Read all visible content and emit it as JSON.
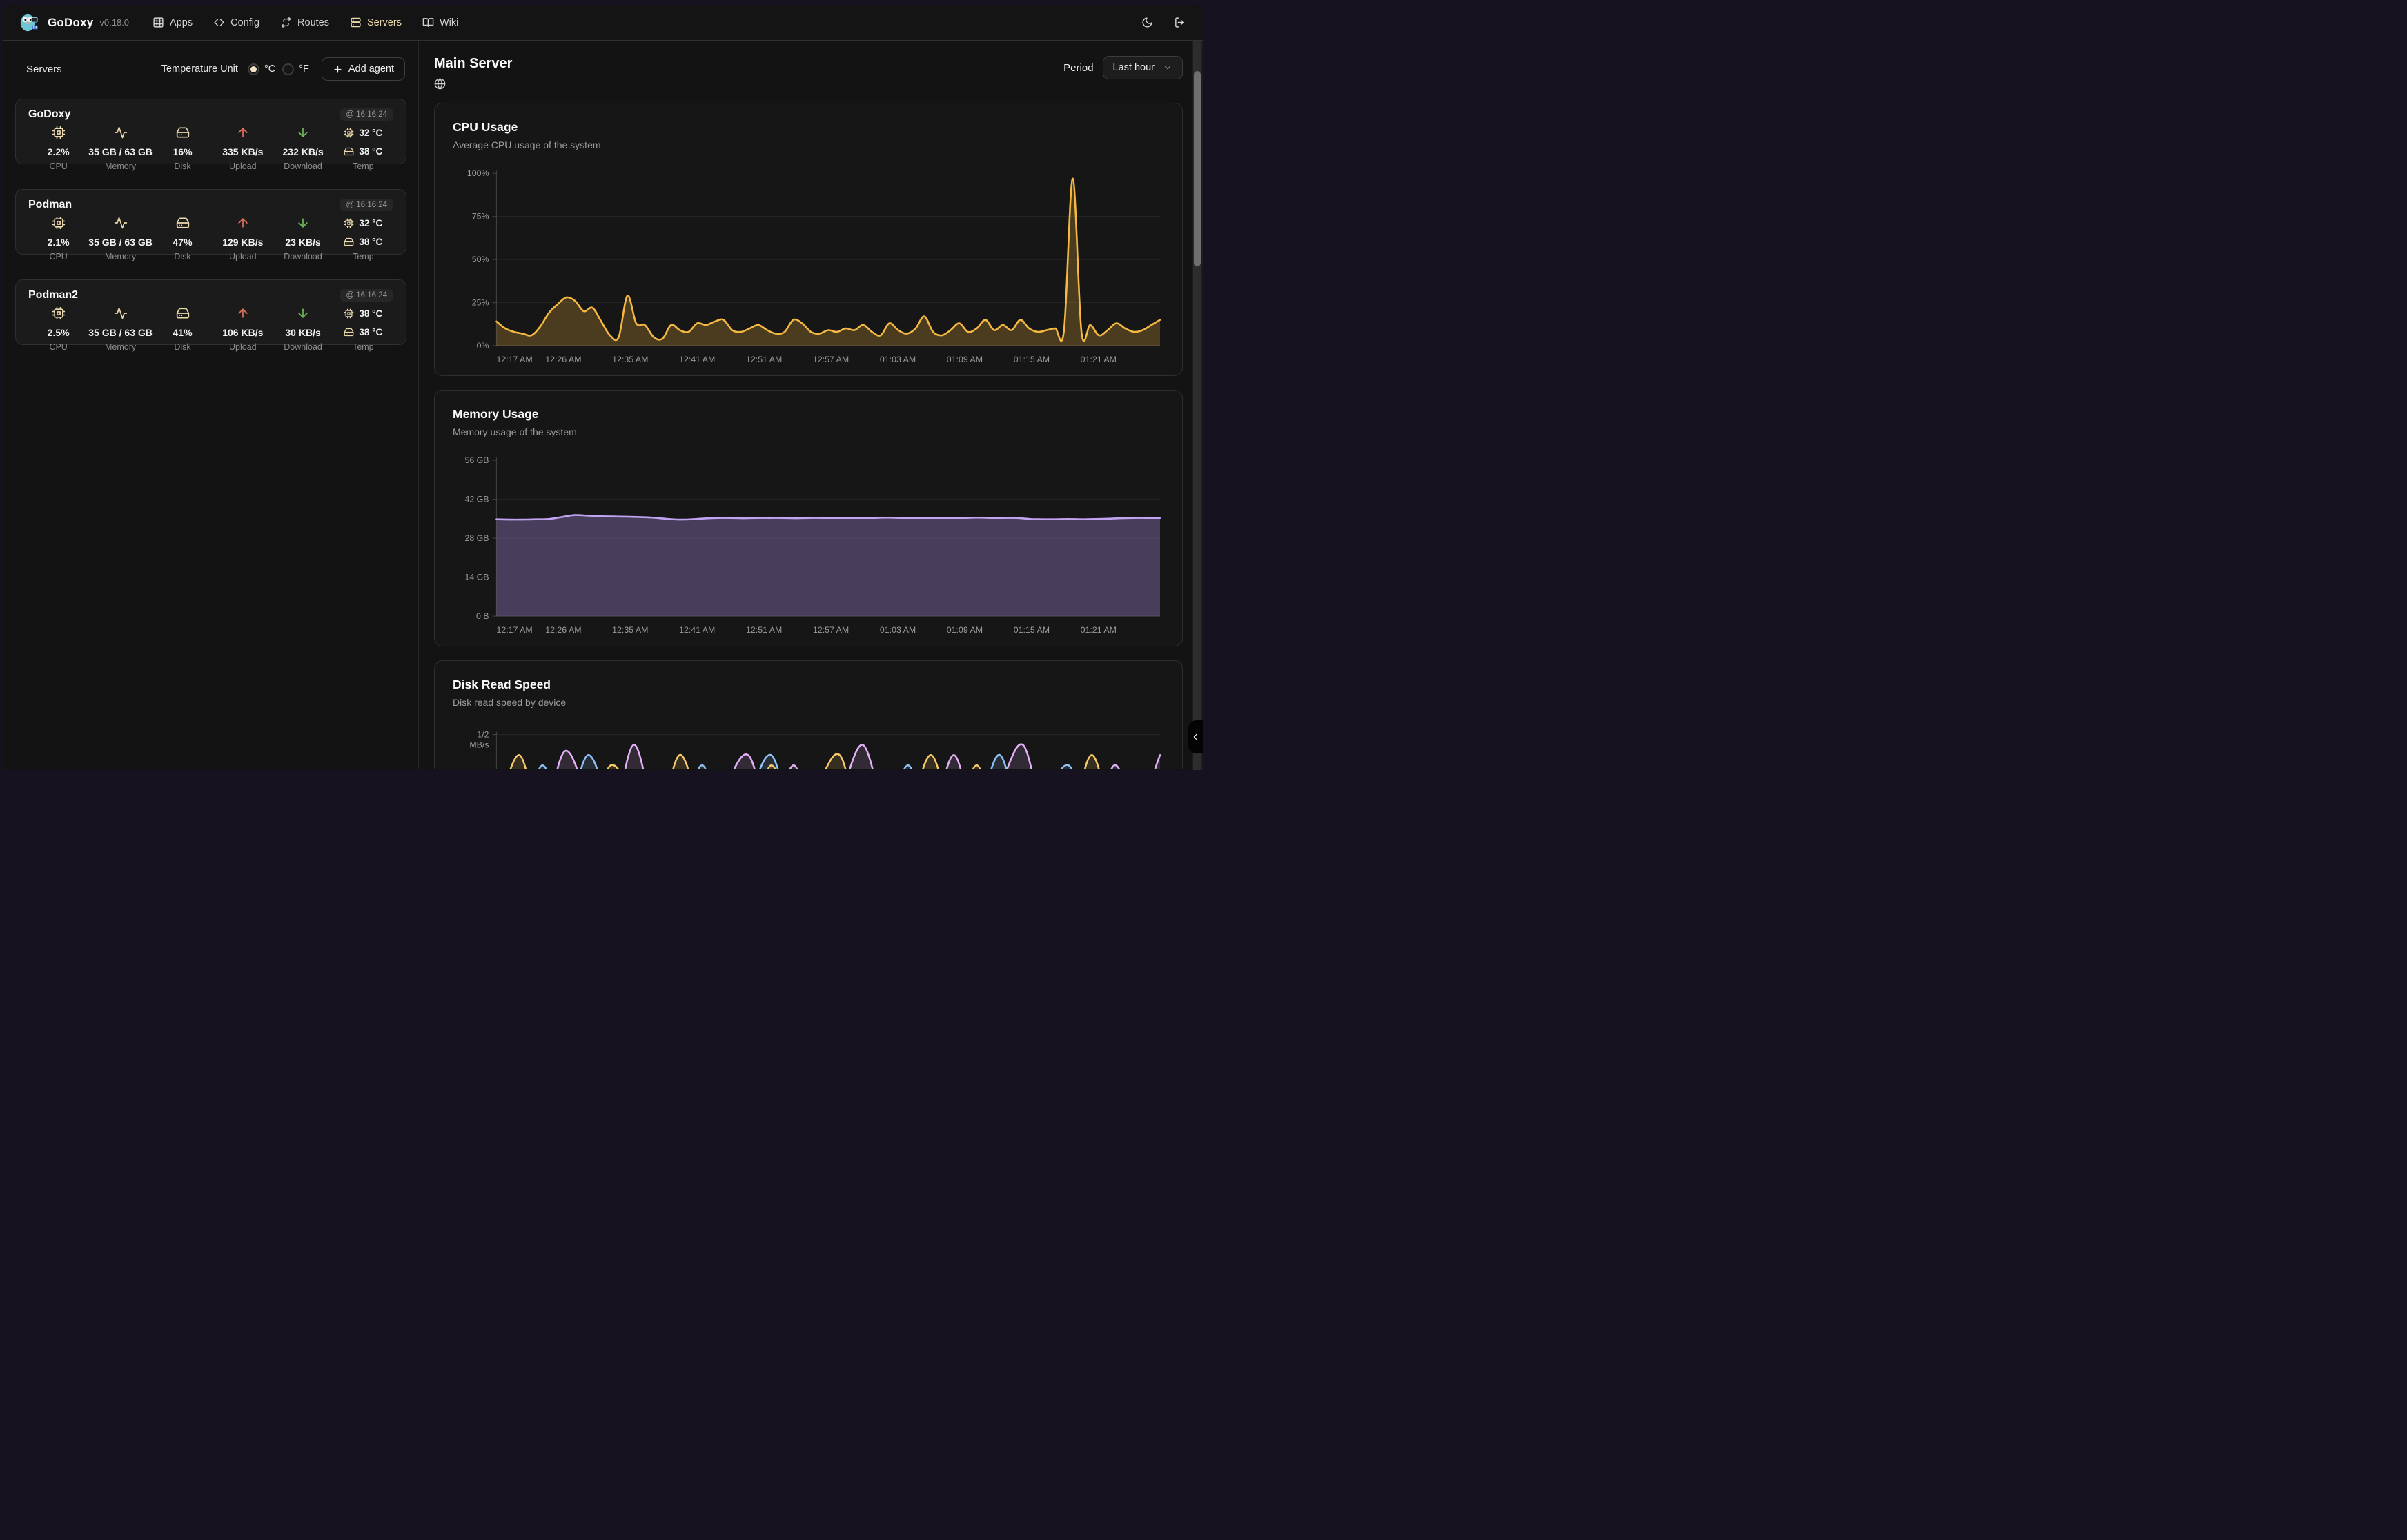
{
  "nav": {
    "brand": "GoDoxy",
    "version": "v0.18.0",
    "items": [
      {
        "label": "Apps"
      },
      {
        "label": "Config"
      },
      {
        "label": "Routes"
      },
      {
        "label": "Servers"
      },
      {
        "label": "Wiki"
      }
    ]
  },
  "sidebar": {
    "title": "Servers",
    "temperature_unit_label": "Temperature Unit",
    "celsius": "°C",
    "fahrenheit": "°F",
    "add_agent": "Add agent",
    "stat_labels": {
      "cpu": "CPU",
      "memory": "Memory",
      "disk": "Disk",
      "upload": "Upload",
      "download": "Download",
      "temp": "Temp"
    },
    "servers": [
      {
        "name": "GoDoxy",
        "time": "@ 16:16:24",
        "cpu": "2.2%",
        "memory": "35 GB / 63 GB",
        "disk": "16%",
        "upload": "335 KB/s",
        "download": "232 KB/s",
        "temp_cpu": "32 °C",
        "temp_disk": "38 °C"
      },
      {
        "name": "Podman",
        "time": "@ 16:16:24",
        "cpu": "2.1%",
        "memory": "35 GB / 63 GB",
        "disk": "47%",
        "upload": "129 KB/s",
        "download": "23 KB/s",
        "temp_cpu": "32 °C",
        "temp_disk": "38 °C"
      },
      {
        "name": "Podman2",
        "time": "@ 16:16:24",
        "cpu": "2.5%",
        "memory": "35 GB / 63 GB",
        "disk": "41%",
        "upload": "106 KB/s",
        "download": "30 KB/s",
        "temp_cpu": "38 °C",
        "temp_disk": "38 °C"
      }
    ]
  },
  "main": {
    "title": "Main Server",
    "period_label": "Period",
    "period_value": "Last hour"
  },
  "colors": {
    "accent_cream": "#ecd9ae",
    "upload_arrow": "#e0735a",
    "download_arrow": "#72b95c",
    "cpu_line": "#f5b942",
    "memory_line": "#c2a4f2",
    "grid": "#272727",
    "axis": "#3f3f3f",
    "tick_text": "#9b9b9b"
  },
  "chart_data": [
    {
      "id": "cpu-chart",
      "type": "area",
      "title": "CPU Usage",
      "subtitle": "Average CPU usage of the system",
      "ylim": [
        0,
        100
      ],
      "yticks": [
        {
          "v": 0,
          "label": "0%"
        },
        {
          "v": 25,
          "label": "25%"
        },
        {
          "v": 50,
          "label": "50%"
        },
        {
          "v": 75,
          "label": "75%"
        },
        {
          "v": 100,
          "label": "100%"
        }
      ],
      "xticks": [
        "12:17 AM",
        "12:26 AM",
        "12:35 AM",
        "12:41 AM",
        "12:51 AM",
        "12:57 AM",
        "01:03 AM",
        "01:09 AM",
        "01:15 AM",
        "01:21 AM"
      ],
      "grid": true,
      "legend": "none",
      "series": [
        {
          "name": "cpu",
          "color": "#f5b942",
          "fill": "rgba(245,185,66,0.24)",
          "values": [
            14,
            10,
            8,
            7,
            6,
            11,
            19,
            24,
            28,
            26,
            20,
            22,
            14,
            6,
            5,
            29,
            13,
            12,
            5,
            4,
            12,
            9,
            8,
            13,
            12,
            14,
            15,
            9,
            8,
            10,
            12,
            9,
            7,
            8,
            15,
            13,
            8,
            7,
            9,
            8,
            10,
            9,
            12,
            8,
            6,
            13,
            9,
            7,
            10,
            17,
            8,
            6,
            9,
            13,
            8,
            10,
            15,
            9,
            12,
            9,
            15,
            10,
            8,
            9,
            10,
            9,
            97,
            8,
            12,
            6,
            9,
            13,
            10,
            8,
            9,
            12,
            15
          ]
        }
      ]
    },
    {
      "id": "memory-chart",
      "type": "area",
      "title": "Memory Usage",
      "subtitle": "Memory usage of the system",
      "ylim": [
        0,
        56
      ],
      "yticks": [
        {
          "v": 0,
          "label": "0 B"
        },
        {
          "v": 14,
          "label": "14 GB"
        },
        {
          "v": 28,
          "label": "28 GB"
        },
        {
          "v": 42,
          "label": "42 GB"
        },
        {
          "v": 56,
          "label": "56 GB"
        }
      ],
      "xticks": [
        "12:17 AM",
        "12:26 AM",
        "12:35 AM",
        "12:41 AM",
        "12:51 AM",
        "12:57 AM",
        "01:03 AM",
        "01:09 AM",
        "01:15 AM",
        "01:21 AM"
      ],
      "grid": true,
      "legend": "none",
      "series": [
        {
          "name": "memory_gb",
          "color": "#c2a4f2",
          "fill": "rgba(139,119,185,0.42)",
          "values": [
            34.8,
            34.7,
            34.7,
            34.8,
            34.9,
            35.6,
            36.3,
            36.1,
            35.9,
            35.8,
            35.7,
            35.6,
            35.4,
            35.0,
            34.7,
            34.8,
            35.1,
            35.3,
            35.3,
            35.2,
            35.3,
            35.3,
            35.3,
            35.2,
            35.3,
            35.3,
            35.3,
            35.3,
            35.3,
            35.3,
            35.4,
            35.3,
            35.3,
            35.3,
            35.3,
            35.3,
            35.3,
            35.4,
            35.3,
            35.3,
            35.3,
            34.9,
            34.8,
            34.8,
            34.9,
            34.8,
            34.9,
            35.0,
            35.2,
            35.3,
            35.3,
            35.3
          ]
        }
      ]
    },
    {
      "id": "disk-chart",
      "type": "line",
      "title": "Disk Read Speed",
      "subtitle": "Disk read speed by device",
      "ylim": [
        0,
        0.5
      ],
      "yticks": [
        {
          "v": 0.5,
          "label": "1/2",
          "label2": "MB/s"
        }
      ],
      "xticks": [],
      "grid": true,
      "legend": "none",
      "series": [
        {
          "name": "violet-line",
          "color": "#e3b0f7",
          "fill": "rgba(227,176,247,0.14)",
          "values": [
            0.05,
            0.3,
            0.1,
            0.42,
            0.2,
            0.05,
            0.45,
            0.1,
            0.3,
            0.05,
            0.25,
            0.4,
            0.1,
            0.35,
            0.05,
            0.2,
            0.45,
            0.15,
            0.3,
            0.1,
            0.4,
            0.05,
            0.25,
            0.45,
            0.1,
            0.3,
            0.05,
            0.35,
            0.15,
            0.4
          ]
        },
        {
          "name": "blue-line",
          "color": "#8ec2f7",
          "fill": "rgba(142,194,247,0.14)",
          "values": [
            0.3,
            0.05,
            0.35,
            0.1,
            0.4,
            0.15,
            0.05,
            0.3,
            0.1,
            0.35,
            0.05,
            0.2,
            0.4,
            0.1,
            0.3,
            0.05,
            0.25,
            0.1,
            0.35,
            0.05,
            0.3,
            0.15,
            0.4,
            0.05,
            0.2,
            0.35,
            0.1,
            0.3,
            0.05,
            0.25
          ]
        },
        {
          "name": "amber-line",
          "color": "#f7c968",
          "fill": "rgba(247,201,104,0.14)",
          "values": [
            0.1,
            0.4,
            0.05,
            0.3,
            0.1,
            0.35,
            0.2,
            0.05,
            0.4,
            0.15,
            0.3,
            0.05,
            0.35,
            0.1,
            0.25,
            0.4,
            0.05,
            0.3,
            0.15,
            0.4,
            0.1,
            0.35,
            0.05,
            0.3,
            0.2,
            0.05,
            0.4,
            0.1,
            0.3,
            0.15
          ]
        }
      ]
    }
  ]
}
